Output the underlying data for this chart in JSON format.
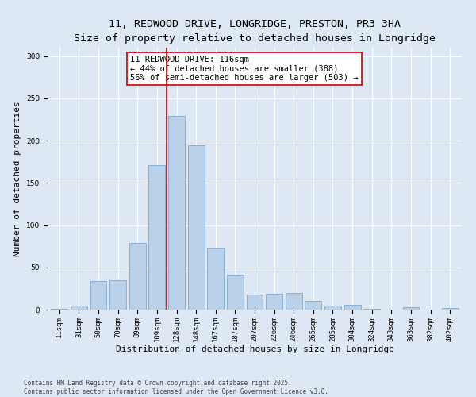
{
  "title_line1": "11, REDWOOD DRIVE, LONGRIDGE, PRESTON, PR3 3HA",
  "title_line2": "Size of property relative to detached houses in Longridge",
  "xlabel": "Distribution of detached houses by size in Longridge",
  "ylabel": "Number of detached properties",
  "bar_color": "#b8d0e8",
  "bar_edge_color": "#6ca0c8",
  "background_color": "#dde8f4",
  "grid_color": "#ffffff",
  "categories": [
    "11sqm",
    "31sqm",
    "50sqm",
    "70sqm",
    "89sqm",
    "109sqm",
    "128sqm",
    "148sqm",
    "167sqm",
    "187sqm",
    "207sqm",
    "226sqm",
    "246sqm",
    "265sqm",
    "285sqm",
    "304sqm",
    "324sqm",
    "343sqm",
    "363sqm",
    "382sqm",
    "402sqm"
  ],
  "values": [
    1,
    5,
    34,
    35,
    79,
    171,
    229,
    194,
    73,
    41,
    18,
    19,
    20,
    10,
    5,
    6,
    1,
    0,
    3,
    0,
    2
  ],
  "vline_x": 5.5,
  "vline_color": "#cc0000",
  "annotation_text": "11 REDWOOD DRIVE: 116sqm\n← 44% of detached houses are smaller (388)\n56% of semi-detached houses are larger (503) →",
  "annotation_box_color": "#ffffff",
  "annotation_box_edge": "#cc0000",
  "ylim": [
    0,
    310
  ],
  "yticks": [
    0,
    50,
    100,
    150,
    200,
    250,
    300
  ],
  "footer": "Contains HM Land Registry data © Crown copyright and database right 2025.\nContains public sector information licensed under the Open Government Licence v3.0.",
  "title_fontsize": 9.5,
  "subtitle_fontsize": 8.5,
  "xlabel_fontsize": 8,
  "ylabel_fontsize": 8,
  "tick_fontsize": 6.5,
  "annotation_fontsize": 7.5,
  "footer_fontsize": 5.5
}
